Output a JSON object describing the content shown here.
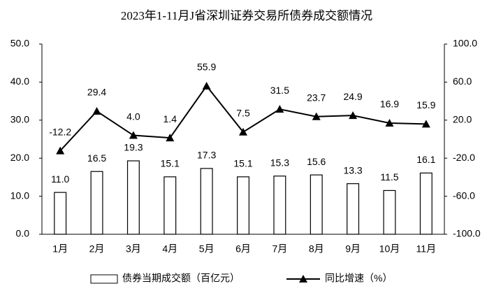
{
  "chart_data": {
    "type": "bar",
    "title": "2023年1-11月J省深圳证券交易所债券成交额情况",
    "categories": [
      "1月",
      "2月",
      "3月",
      "4月",
      "5月",
      "6月",
      "7月",
      "8月",
      "9月",
      "10月",
      "11月"
    ],
    "series": [
      {
        "name": "债券当期成交额（百亿元）",
        "type": "bar",
        "color": "#ffffff",
        "values": [
          11.0,
          16.5,
          19.3,
          15.1,
          17.3,
          15.1,
          15.3,
          15.6,
          13.3,
          11.5,
          16.1
        ],
        "value_labels": [
          "11.0",
          "16.5",
          "19.3",
          "15.1",
          "17.3",
          "15.1",
          "15.3",
          "15.6",
          "13.3",
          "11.5",
          "16.1"
        ]
      },
      {
        "name": "同比增速（%）",
        "type": "line",
        "axis": "y2",
        "color": "#000000",
        "values": [
          -12.2,
          29.4,
          4.0,
          1.4,
          55.9,
          7.5,
          31.5,
          23.7,
          24.9,
          16.9,
          15.9
        ],
        "value_labels": [
          "-12.2",
          "29.4",
          "4.0",
          "1.4",
          "55.9",
          "7.5",
          "31.5",
          "23.7",
          "24.9",
          "16.9",
          "15.9"
        ]
      }
    ],
    "ylim": [
      0,
      50
    ],
    "yticks": [
      {
        "value": 0,
        "label": "0.0"
      },
      {
        "value": 10,
        "label": "10.0"
      },
      {
        "value": 20,
        "label": "20.0"
      },
      {
        "value": 30,
        "label": "30.0"
      },
      {
        "value": 40,
        "label": "40.0"
      },
      {
        "value": 50,
        "label": "50.0"
      }
    ],
    "y2lim": [
      -100,
      100
    ],
    "y2ticks": [
      {
        "value": -100,
        "label": "-100.0"
      },
      {
        "value": -60,
        "label": "-60.0"
      },
      {
        "value": -20,
        "label": "-20.0"
      },
      {
        "value": 20,
        "label": "20.0"
      },
      {
        "value": 60,
        "label": "60.0"
      },
      {
        "value": 100,
        "label": "100.0"
      }
    ],
    "grid": false,
    "legend": "bottom"
  }
}
